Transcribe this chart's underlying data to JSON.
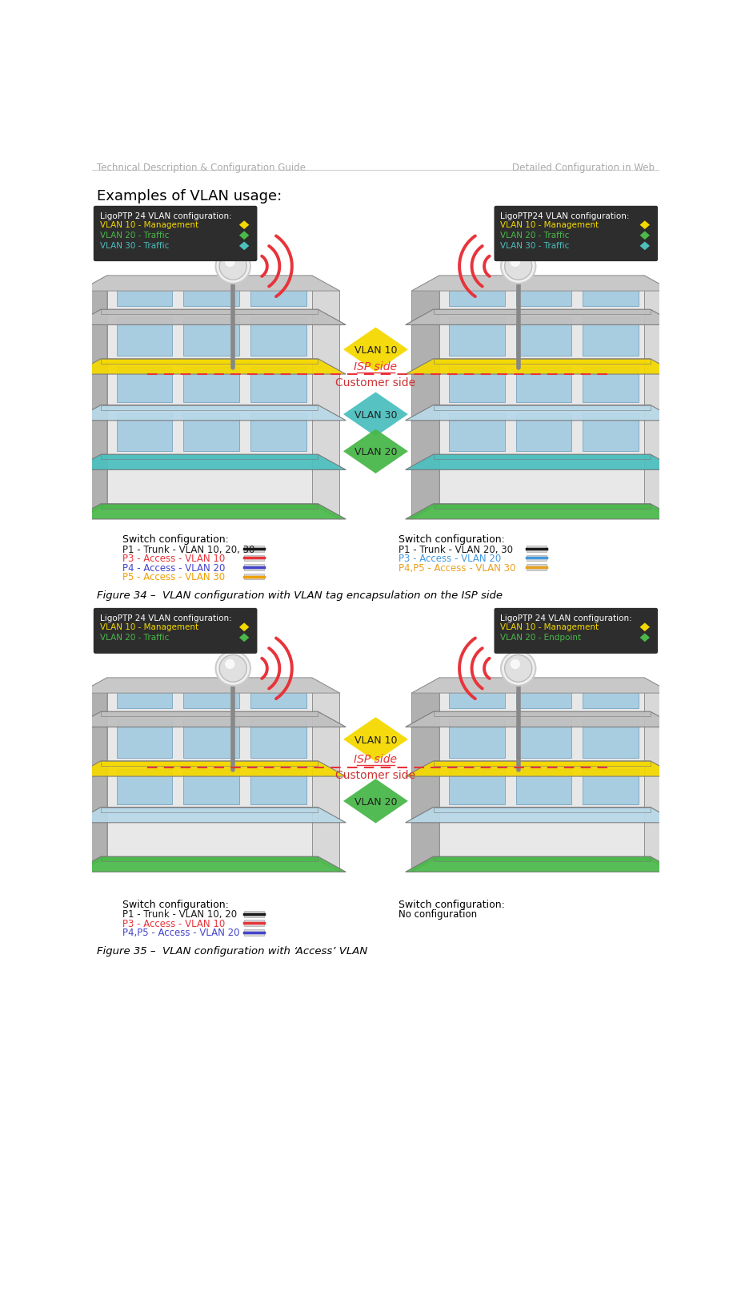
{
  "bg_color": "#ffffff",
  "header_left": "Technical Description & Configuration Guide",
  "header_right": "Detailed Configuration in Web",
  "header_color": "#aaaaaa",
  "section_title": "Examples of VLAN usage:",
  "fig34_caption": "Figure 34 –  VLAN configuration with VLAN tag encapsulation on the ISP side",
  "fig35_caption": "Figure 35 –  VLAN configuration with ‘Access’ VLAN",
  "dark_box_color": "#2d2d2d",
  "vlan10_color": "#f5d800",
  "vlan20_color": "#4ab84a",
  "vlan30_color": "#4dbfbf",
  "wifi_color": "#e8333a",
  "isp_color": "#e8333a",
  "fig1_left_config": [
    "LigoPTP 24 VLAN configuration:",
    "VLAN 10 - Management",
    "VLAN 20 - Traffic",
    "VLAN 30 - Traffic"
  ],
  "fig1_right_config": [
    "LigoPTP24 VLAN configuration:",
    "VLAN 10 - Management",
    "VLAN 20 - Traffic",
    "VLAN 30 - Traffic"
  ],
  "fig2_left_config": [
    "LigoPTP 24 VLAN configuration:",
    "VLAN 10 - Management",
    "VLAN 20 - Traffic"
  ],
  "fig2_right_config": [
    "LigoPTP 24 VLAN configuration:",
    "VLAN 10 - Management",
    "VLAN 20 - Endpoint"
  ],
  "switch_left_fig1_labels": [
    "Switch configuration:",
    "P1 - Trunk - VLAN 10, 20, 30",
    "P3 - Access - VLAN 10",
    "P4 - Access - VLAN 20",
    "P5 - Access - VLAN 30"
  ],
  "switch_left_fig1_colors": [
    "#1a1a1a",
    "#1a1a1a",
    "#e8333a",
    "#4444cc",
    "#f0a000"
  ],
  "switch_right_fig1_labels": [
    "Switch configuration:",
    "P1 - Trunk - VLAN 20, 30",
    "P3 - Access - VLAN 20",
    "P4,P5 - Access - VLAN 30"
  ],
  "switch_right_fig1_colors": [
    "#1a1a1a",
    "#1a1a1a",
    "#4499dd",
    "#e8a020"
  ],
  "switch_left_fig2_labels": [
    "Switch configuration:",
    "P1 - Trunk - VLAN 10, 20",
    "P3 - Access - VLAN 10",
    "P4,P5 - Access - VLAN 20"
  ],
  "switch_left_fig2_colors": [
    "#1a1a1a",
    "#1a1a1a",
    "#e8333a",
    "#4444cc"
  ],
  "switch_right_fig2_labels": [
    "Switch configuration:",
    "No configuration"
  ],
  "switch_right_fig2_colors": [
    "#1a1a1a",
    "#1a1a1a"
  ],
  "vlan_colors_fig1": [
    "#f5d800",
    "#4dbfbf",
    "#4ab84a"
  ],
  "vlan_labels_fig1": [
    "VLAN 10",
    "VLAN 30",
    "VLAN 20"
  ],
  "vlan_colors_fig2": [
    "#f5d800",
    "#4ab84a"
  ],
  "vlan_labels_fig2": [
    "VLAN 10",
    "VLAN 20"
  ]
}
